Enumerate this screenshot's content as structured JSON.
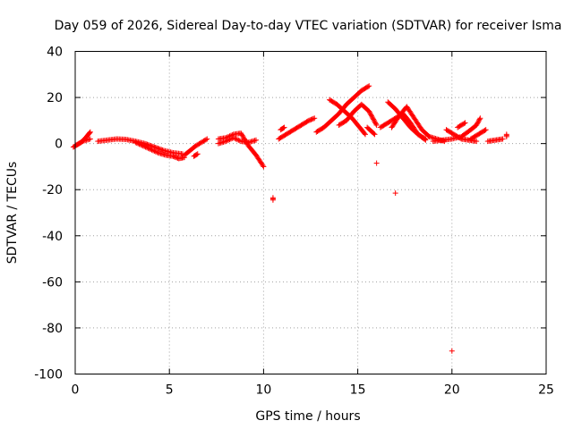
{
  "chart_data": {
    "type": "scatter",
    "title": "Day 059 of 2026, Sidereal Day-to-day VTEC variation (SDTVAR) for receiver Isma",
    "xlabel": "GPS time / hours",
    "ylabel": "SDTVAR / TECUs",
    "xlim": [
      0,
      25
    ],
    "ylim": [
      -100,
      40
    ],
    "xticks": [
      0,
      5,
      10,
      15,
      20,
      25
    ],
    "yticks": [
      -100,
      -80,
      -60,
      -40,
      -20,
      0,
      20,
      40
    ],
    "xtick_labels": [
      "0",
      "5",
      "10",
      "15",
      "20",
      "25"
    ],
    "ytick_labels": [
      "-100",
      "-80",
      "-60",
      "-40",
      "-20",
      "0",
      "20",
      "40"
    ],
    "grid": true,
    "marker": "+",
    "color": "#ff0000",
    "series_segments": [
      {
        "name": "arc-1",
        "points": [
          [
            -0.1,
            -1.5
          ],
          [
            0.1,
            -0.5
          ],
          [
            0.3,
            0.5
          ],
          [
            0.5,
            2
          ],
          [
            0.7,
            4
          ],
          [
            0.8,
            5
          ]
        ]
      },
      {
        "name": "arc-2",
        "points": [
          [
            0.0,
            -1
          ],
          [
            0.2,
            0
          ],
          [
            0.4,
            1
          ],
          [
            0.6,
            1.5
          ],
          [
            0.8,
            2
          ]
        ]
      },
      {
        "name": "arc-3",
        "points": [
          [
            1.2,
            1
          ],
          [
            1.7,
            1.5
          ],
          [
            2.2,
            2
          ],
          [
            2.7,
            1.8
          ],
          [
            3.2,
            1
          ],
          [
            3.7,
            0
          ],
          [
            4.2,
            -1.5
          ],
          [
            4.7,
            -3
          ],
          [
            5.2,
            -4
          ],
          [
            5.7,
            -4.5
          ]
        ]
      },
      {
        "name": "arc-4",
        "points": [
          [
            3.2,
            0.5
          ],
          [
            3.6,
            -1
          ],
          [
            4.0,
            -2.5
          ],
          [
            4.4,
            -4
          ],
          [
            4.8,
            -5
          ],
          [
            5.2,
            -5.5
          ],
          [
            5.5,
            -6.5
          ],
          [
            5.8,
            -6
          ]
        ]
      },
      {
        "name": "arc-5",
        "points": [
          [
            5.8,
            -5
          ],
          [
            6.1,
            -3
          ],
          [
            6.4,
            -1
          ],
          [
            6.7,
            0.5
          ],
          [
            7.0,
            2
          ]
        ]
      },
      {
        "name": "arc-6",
        "points": [
          [
            6.3,
            -5.5
          ],
          [
            6.5,
            -4.5
          ]
        ]
      },
      {
        "name": "arc-7",
        "points": [
          [
            7.6,
            2
          ],
          [
            8.0,
            2.5
          ],
          [
            8.4,
            4
          ],
          [
            8.8,
            4.5
          ],
          [
            9.2,
            -1
          ],
          [
            9.6,
            -5
          ],
          [
            10.0,
            -10
          ]
        ]
      },
      {
        "name": "arc-8",
        "points": [
          [
            7.6,
            0
          ],
          [
            8.0,
            1
          ],
          [
            8.4,
            2.5
          ],
          [
            8.8,
            1
          ],
          [
            9.2,
            0.5
          ],
          [
            9.6,
            1.5
          ]
        ]
      },
      {
        "name": "arc-9",
        "points": [
          [
            10.5,
            -23.5
          ],
          [
            10.5,
            -24.5
          ]
        ]
      },
      {
        "name": "arc-10",
        "points": [
          [
            10.8,
            2
          ],
          [
            11.2,
            4
          ],
          [
            11.6,
            6
          ],
          [
            12.0,
            8
          ],
          [
            12.4,
            10
          ],
          [
            12.7,
            11
          ]
        ]
      },
      {
        "name": "arc-11",
        "points": [
          [
            10.9,
            6
          ],
          [
            11.1,
            7
          ]
        ]
      },
      {
        "name": "arc-12",
        "points": [
          [
            12.8,
            5
          ],
          [
            13.2,
            7
          ],
          [
            13.6,
            10
          ],
          [
            14.0,
            13
          ],
          [
            14.4,
            17
          ],
          [
            14.8,
            20
          ],
          [
            15.2,
            23
          ],
          [
            15.6,
            25
          ]
        ]
      },
      {
        "name": "arc-13",
        "points": [
          [
            13.5,
            19
          ],
          [
            13.9,
            17
          ],
          [
            14.3,
            14
          ],
          [
            14.7,
            11
          ],
          [
            15.1,
            7
          ],
          [
            15.4,
            4
          ]
        ]
      },
      {
        "name": "arc-14",
        "points": [
          [
            14.0,
            8
          ],
          [
            14.4,
            10
          ],
          [
            14.8,
            14
          ],
          [
            15.2,
            17
          ],
          [
            15.6,
            14
          ],
          [
            16.0,
            8
          ]
        ]
      },
      {
        "name": "arc-15",
        "points": [
          [
            15.5,
            7
          ],
          [
            15.9,
            4
          ]
        ]
      },
      {
        "name": "arc-16",
        "points": [
          [
            16.0,
            -8.5
          ]
        ]
      },
      {
        "name": "arc-17",
        "points": [
          [
            16.2,
            7
          ],
          [
            16.6,
            9
          ],
          [
            17.0,
            11
          ],
          [
            17.4,
            13
          ],
          [
            17.8,
            9
          ],
          [
            18.2,
            4
          ],
          [
            18.6,
            1.5
          ]
        ]
      },
      {
        "name": "arc-18",
        "points": [
          [
            16.6,
            18
          ],
          [
            17.0,
            15
          ],
          [
            17.4,
            11
          ],
          [
            17.8,
            7
          ],
          [
            18.2,
            4
          ],
          [
            18.6,
            2
          ]
        ]
      },
      {
        "name": "arc-19",
        "points": [
          [
            16.8,
            7
          ],
          [
            17.2,
            12
          ],
          [
            17.6,
            16
          ],
          [
            18.0,
            11
          ],
          [
            18.4,
            6
          ],
          [
            18.8,
            3
          ],
          [
            19.2,
            2
          ],
          [
            19.6,
            1
          ]
        ]
      },
      {
        "name": "arc-20",
        "points": [
          [
            17.0,
            -21.5
          ]
        ]
      },
      {
        "name": "arc-21",
        "points": [
          [
            19.0,
            1
          ],
          [
            19.5,
            1.5
          ],
          [
            20.0,
            2
          ],
          [
            20.5,
            3
          ],
          [
            21.0,
            6
          ],
          [
            21.3,
            8
          ],
          [
            21.5,
            11
          ]
        ]
      },
      {
        "name": "arc-22",
        "points": [
          [
            19.7,
            6
          ],
          [
            20.1,
            4
          ],
          [
            20.5,
            2
          ],
          [
            20.9,
            1.5
          ],
          [
            21.3,
            1
          ]
        ]
      },
      {
        "name": "arc-23",
        "points": [
          [
            20.3,
            7
          ],
          [
            20.7,
            9
          ]
        ]
      },
      {
        "name": "arc-24",
        "points": [
          [
            21.0,
            2
          ],
          [
            21.4,
            4
          ],
          [
            21.8,
            6
          ]
        ]
      },
      {
        "name": "arc-25",
        "points": [
          [
            20.0,
            -90
          ]
        ]
      },
      {
        "name": "arc-26",
        "points": [
          [
            21.9,
            1
          ],
          [
            22.3,
            1.5
          ],
          [
            22.7,
            2
          ]
        ]
      },
      {
        "name": "arc-27",
        "points": [
          [
            22.9,
            3
          ],
          [
            22.9,
            4
          ]
        ]
      }
    ]
  }
}
